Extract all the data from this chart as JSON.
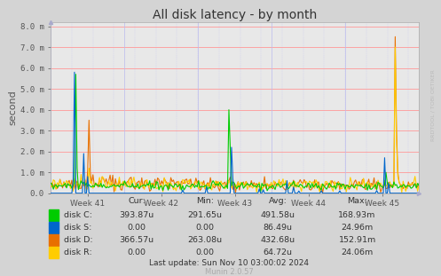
{
  "title": "All disk latency - by month",
  "ylabel": "second",
  "ytick_labels": [
    "0.0",
    "1.0 m",
    "2.0 m",
    "3.0 m",
    "4.0 m",
    "5.0 m",
    "6.0 m",
    "7.0 m",
    "8.0 m"
  ],
  "ylim_max": 0.0082,
  "xtick_labels": [
    "Week 41",
    "Week 42",
    "Week 43",
    "Week 44",
    "Week 45"
  ],
  "bg_color": "#d4d4d4",
  "plot_bg_color": "#e8e8e8",
  "title_color": "#333333",
  "colors": {
    "disk_C": "#00cc00",
    "disk_S": "#0066cc",
    "disk_D": "#e87000",
    "disk_R": "#ffcc00"
  },
  "legend": [
    {
      "label": "disk C:",
      "cur": "393.87u",
      "min": "291.65u",
      "avg": "491.58u",
      "max": "168.93m"
    },
    {
      "label": "disk S:",
      "cur": "0.00",
      "min": "0.00",
      "avg": "86.49u",
      "max": "24.96m"
    },
    {
      "label": "disk D:",
      "cur": "366.57u",
      "min": "263.08u",
      "avg": "432.68u",
      "max": "152.91m"
    },
    {
      "label": "disk R:",
      "cur": "0.00",
      "min": "0.00",
      "avg": "64.72u",
      "max": "24.06m"
    }
  ],
  "last_update": "Last update: Sun Nov 10 03:00:02 2024",
  "munin_version": "Munin 2.0.57",
  "watermark": "RRDTOOL / TOBI OETIKER",
  "figsize": [
    4.97,
    3.11
  ],
  "dpi": 100
}
